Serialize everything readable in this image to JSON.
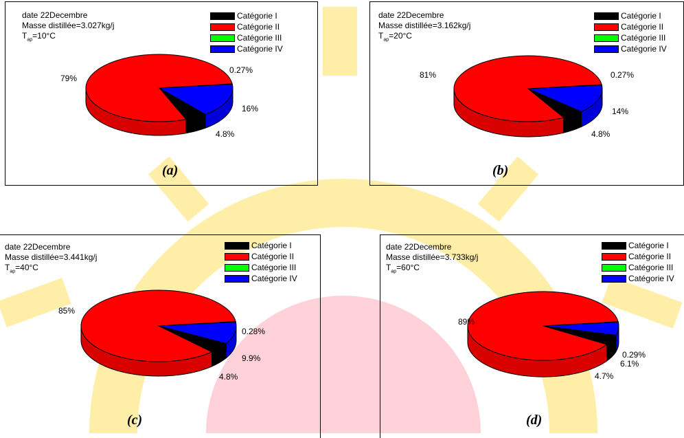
{
  "colors": {
    "cat1": "#000000",
    "cat2": "#ff0000",
    "cat3": "#00ff00",
    "cat4": "#0000ff",
    "watermark_yellow": "#ffe060",
    "watermark_red": "#ff9aa8"
  },
  "chart_data": [
    {
      "type": "pie",
      "panel_label": "(a)",
      "info": {
        "date": "date 22Decembre",
        "masse": "Masse distillée=3.027kg/j",
        "temp_prefix": "T",
        "temp_sub": "ap",
        "temp_value": "=10°C"
      },
      "legend": [
        "Catégorie I",
        "Catégorie II",
        "Catégorie III",
        "Catégorie IV"
      ],
      "slices": [
        {
          "name": "Catégorie I",
          "value": 4.8,
          "label": "4.8%"
        },
        {
          "name": "Catégorie II",
          "value": 79,
          "label": "79%"
        },
        {
          "name": "Catégorie III",
          "value": 0.27,
          "label": "0.27%"
        },
        {
          "name": "Catégorie IV",
          "value": 16,
          "label": "16%"
        }
      ]
    },
    {
      "type": "pie",
      "panel_label": "(b)",
      "info": {
        "date": "date 22Decembre",
        "masse": "Masse distillée=3.162kg/j",
        "temp_prefix": "T",
        "temp_sub": "ap",
        "temp_value": "=20°C"
      },
      "legend": [
        "Catégorie I",
        "Catégorie II",
        "Catégorie III",
        "Catégorie IV"
      ],
      "slices": [
        {
          "name": "Catégorie I",
          "value": 4.8,
          "label": "4.8%"
        },
        {
          "name": "Catégorie II",
          "value": 81,
          "label": "81%"
        },
        {
          "name": "Catégorie III",
          "value": 0.27,
          "label": "0.27%"
        },
        {
          "name": "Catégorie IV",
          "value": 14,
          "label": "14%"
        }
      ]
    },
    {
      "type": "pie",
      "panel_label": "(c)",
      "info": {
        "date": "date 22Decembre",
        "masse": "Masse distillée=3.441kg/j",
        "temp_prefix": "T",
        "temp_sub": "ap",
        "temp_value": "=40°C"
      },
      "legend": [
        "Catégorie I",
        "Catégorie II",
        "Catégorie III",
        "Catégorie IV"
      ],
      "slices": [
        {
          "name": "Catégorie I",
          "value": 4.8,
          "label": "4.8%"
        },
        {
          "name": "Catégorie II",
          "value": 85,
          "label": "85%"
        },
        {
          "name": "Catégorie III",
          "value": 0.28,
          "label": "0.28%"
        },
        {
          "name": "Catégorie IV",
          "value": 9.9,
          "label": "9.9%"
        }
      ]
    },
    {
      "type": "pie",
      "panel_label": "(d)",
      "info": {
        "date": "date 22Decembre",
        "masse": "Masse distillée=3.733kg/j",
        "temp_prefix": "T",
        "temp_sub": "ap",
        "temp_value": "=60°C"
      },
      "legend": [
        "Catégorie I",
        "Catégorie II",
        "Catégorie III",
        "Catégorie IV"
      ],
      "slices": [
        {
          "name": "Catégorie I",
          "value": 4.7,
          "label": "4.7%"
        },
        {
          "name": "Catégorie II",
          "value": 89,
          "label": "89%"
        },
        {
          "name": "Catégorie III",
          "value": 0.29,
          "label": "0.29%"
        },
        {
          "name": "Catégorie IV",
          "value": 6.1,
          "label": "6.1%"
        }
      ]
    }
  ]
}
